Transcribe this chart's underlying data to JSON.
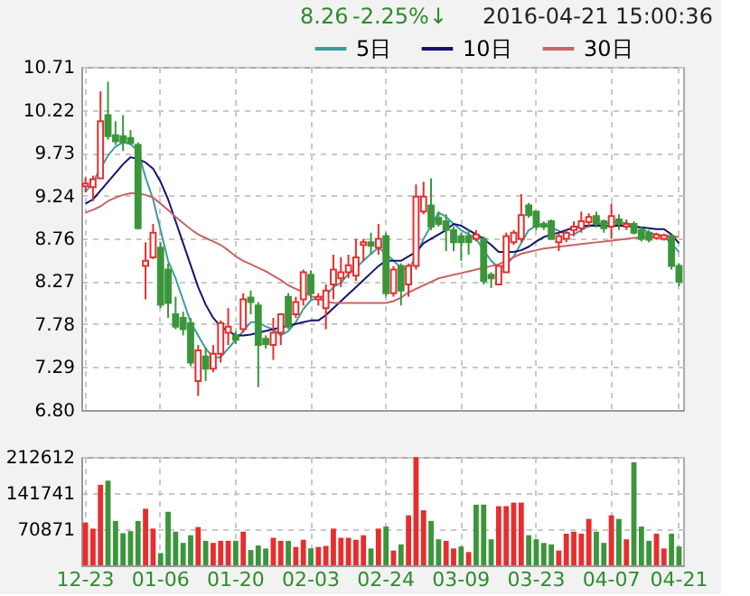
{
  "chart_data": [
    {
      "type": "candlestick",
      "categories": [
        null,
        null,
        null,
        null,
        null,
        null,
        null,
        null,
        null,
        null,
        null,
        null,
        null,
        null,
        null,
        null,
        null,
        null,
        null,
        null,
        null,
        null,
        null,
        null,
        null,
        null,
        null,
        null,
        null,
        null,
        null,
        null,
        null,
        null,
        null,
        null,
        null,
        null,
        null,
        null,
        null,
        null,
        null,
        null,
        null,
        null,
        null,
        null,
        null,
        null,
        null,
        null,
        null,
        null,
        null,
        null,
        null,
        null,
        null,
        null,
        null,
        null,
        null,
        null,
        null,
        null,
        null,
        null,
        null,
        null,
        null,
        null,
        null,
        null,
        null,
        null,
        null,
        null,
        null,
        null
      ],
      "ohlc": [
        [
          9.35,
          9.45,
          9.28,
          9.38
        ],
        [
          9.34,
          9.47,
          9.18,
          9.43
        ],
        [
          9.44,
          10.43,
          9.44,
          10.09
        ],
        [
          10.16,
          10.54,
          9.88,
          9.92
        ],
        [
          9.93,
          10.09,
          9.82,
          9.86
        ],
        [
          9.92,
          10.16,
          9.75,
          9.85
        ],
        [
          9.9,
          9.99,
          9.82,
          9.84
        ],
        [
          9.82,
          9.85,
          8.86,
          8.87
        ],
        [
          8.44,
          8.71,
          8.06,
          8.5
        ],
        [
          8.54,
          8.92,
          8.52,
          8.82
        ],
        [
          8.65,
          8.71,
          7.96,
          8.0
        ],
        [
          8.4,
          8.47,
          7.85,
          8.02
        ],
        [
          7.89,
          8.09,
          7.72,
          7.75
        ],
        [
          7.85,
          7.92,
          7.65,
          7.72
        ],
        [
          7.79,
          7.85,
          7.3,
          7.34
        ],
        [
          7.13,
          7.54,
          6.96,
          7.48
        ],
        [
          7.41,
          7.51,
          7.13,
          7.27
        ],
        [
          7.27,
          7.54,
          7.23,
          7.44
        ],
        [
          7.44,
          7.82,
          7.34,
          7.79
        ],
        [
          7.68,
          7.96,
          7.54,
          7.75
        ],
        [
          7.65,
          7.7,
          7.55,
          7.6
        ],
        [
          7.72,
          8.13,
          7.68,
          8.06
        ],
        [
          8.08,
          8.16,
          7.89,
          8.03
        ],
        [
          7.99,
          8.03,
          7.06,
          7.54
        ],
        [
          7.61,
          7.65,
          7.5,
          7.55
        ],
        [
          7.54,
          7.85,
          7.37,
          7.68
        ],
        [
          7.68,
          7.89,
          7.54,
          7.89
        ],
        [
          8.09,
          8.13,
          7.72,
          7.75
        ],
        [
          7.89,
          8.09,
          7.85,
          8.03
        ],
        [
          8.06,
          8.4,
          7.99,
          8.37
        ],
        [
          8.34,
          8.39,
          8.06,
          8.13
        ],
        [
          8.06,
          8.13,
          7.99,
          8.09
        ],
        [
          7.96,
          8.23,
          7.72,
          8.16
        ],
        [
          8.23,
          8.57,
          8.06,
          8.4
        ],
        [
          8.3,
          8.54,
          8.2,
          8.37
        ],
        [
          8.37,
          8.57,
          8.3,
          8.45
        ],
        [
          8.33,
          8.75,
          8.27,
          8.54
        ],
        [
          8.68,
          8.75,
          8.5,
          8.71
        ],
        [
          8.71,
          8.82,
          8.57,
          8.67
        ],
        [
          8.65,
          8.92,
          8.57,
          8.75
        ],
        [
          8.78,
          8.82,
          8.09,
          8.13
        ],
        [
          8.13,
          8.44,
          8.09,
          8.4
        ],
        [
          8.44,
          8.47,
          7.99,
          8.16
        ],
        [
          8.23,
          8.47,
          8.09,
          8.44
        ],
        [
          8.44,
          9.37,
          8.4,
          9.23
        ],
        [
          9.06,
          9.4,
          9.03,
          9.23
        ],
        [
          9.13,
          9.44,
          8.85,
          8.89
        ],
        [
          8.99,
          9.06,
          8.89,
          8.92
        ],
        [
          8.95,
          9.03,
          8.61,
          8.85
        ],
        [
          8.85,
          8.89,
          8.61,
          8.71
        ],
        [
          8.78,
          8.82,
          8.5,
          8.71
        ],
        [
          8.78,
          8.85,
          8.57,
          8.71
        ],
        [
          8.75,
          8.85,
          8.72,
          8.8
        ],
        [
          8.75,
          8.78,
          8.23,
          8.27
        ],
        [
          8.34,
          8.37,
          8.19,
          8.3
        ],
        [
          8.23,
          8.44,
          8.23,
          8.44
        ],
        [
          8.37,
          8.82,
          8.37,
          8.78
        ],
        [
          8.71,
          8.85,
          8.68,
          8.82
        ],
        [
          8.75,
          9.26,
          8.71,
          9.02
        ],
        [
          9.13,
          9.16,
          8.99,
          9.02
        ],
        [
          9.06,
          9.06,
          8.85,
          8.89
        ],
        [
          8.92,
          8.95,
          8.85,
          8.89
        ],
        [
          8.95,
          8.97,
          8.75,
          8.75
        ],
        [
          8.71,
          8.82,
          8.61,
          8.78
        ],
        [
          8.75,
          8.85,
          8.71,
          8.82
        ],
        [
          8.85,
          8.95,
          8.78,
          8.89
        ],
        [
          8.87,
          9.06,
          8.82,
          8.95
        ],
        [
          8.94,
          9.04,
          8.88,
          9.0
        ],
        [
          9.01,
          9.06,
          8.88,
          8.92
        ],
        [
          8.95,
          8.97,
          8.82,
          8.87
        ],
        [
          8.89,
          9.15,
          8.75,
          9.01
        ],
        [
          8.97,
          9.03,
          8.85,
          8.92
        ],
        [
          8.89,
          8.97,
          8.85,
          8.92
        ],
        [
          8.92,
          8.95,
          8.8,
          8.82
        ],
        [
          8.85,
          8.89,
          8.72,
          8.75
        ],
        [
          8.82,
          8.85,
          8.71,
          8.74
        ],
        [
          8.76,
          8.82,
          8.74,
          8.8
        ],
        [
          8.75,
          8.81,
          8.73,
          8.79
        ],
        [
          8.78,
          8.8,
          8.4,
          8.44
        ],
        [
          8.44,
          8.47,
          8.21,
          8.26
        ]
      ],
      "colors": [
        "#e62e2e",
        "#e62e2e",
        "#e62e2e",
        "#3b963b",
        "#3b963b",
        "#3b963b",
        "#3b963b",
        "#3b963b",
        "#e62e2e",
        "#e62e2e",
        "#3b963b",
        "#3b963b",
        "#3b963b",
        "#3b963b",
        "#3b963b",
        "#e62e2e",
        "#3b963b",
        "#e62e2e",
        "#e62e2e",
        "#e62e2e",
        "#3b963b",
        "#e62e2e",
        "#3b963b",
        "#3b963b",
        "#3b963b",
        "#e62e2e",
        "#e62e2e",
        "#3b963b",
        "#e62e2e",
        "#e62e2e",
        "#3b963b",
        "#e62e2e",
        "#e62e2e",
        "#e62e2e",
        "#e62e2e",
        "#e62e2e",
        "#e62e2e",
        "#e62e2e",
        "#3b963b",
        "#e62e2e",
        "#3b963b",
        "#e62e2e",
        "#3b963b",
        "#e62e2e",
        "#e62e2e",
        "#e62e2e",
        "#3b963b",
        "#3b963b",
        "#3b963b",
        "#3b963b",
        "#3b963b",
        "#3b963b",
        "#e62e2e",
        "#3b963b",
        "#3b963b",
        "#e62e2e",
        "#e62e2e",
        "#e62e2e",
        "#e62e2e",
        "#3b963b",
        "#3b963b",
        "#3b963b",
        "#3b963b",
        "#e62e2e",
        "#e62e2e",
        "#e62e2e",
        "#e62e2e",
        "#e62e2e",
        "#3b963b",
        "#3b963b",
        "#e62e2e",
        "#3b963b",
        "#e62e2e",
        "#3b963b",
        "#3b963b",
        "#3b963b",
        "#e62e2e",
        "#e62e2e",
        "#3b963b",
        "#3b963b"
      ],
      "series": [
        {
          "name": "5日",
          "type": "line",
          "color": "#3a9e9e",
          "values": [
            9.28,
            9.4,
            9.55,
            9.7,
            9.8,
            9.85,
            9.83,
            9.75,
            9.45,
            9.2,
            8.85,
            8.5,
            8.3,
            8.05,
            7.8,
            7.65,
            7.5,
            7.4,
            7.4,
            7.5,
            7.6,
            7.7,
            7.8,
            7.8,
            7.75,
            7.72,
            7.65,
            7.7,
            7.8,
            7.95,
            8.05,
            8.08,
            8.1,
            8.2,
            8.25,
            8.35,
            8.42,
            8.5,
            8.58,
            8.65,
            8.58,
            8.5,
            8.42,
            8.4,
            8.55,
            8.75,
            8.9,
            9.05,
            9.0,
            8.92,
            8.85,
            8.8,
            8.75,
            8.62,
            8.5,
            8.42,
            8.45,
            8.55,
            8.7,
            8.85,
            8.9,
            8.92,
            8.88,
            8.84,
            8.8,
            8.8,
            8.85,
            8.9,
            8.92,
            8.92,
            8.94,
            8.94,
            8.93,
            8.9,
            8.87,
            8.82,
            8.8,
            8.77,
            8.7,
            8.6
          ]
        },
        {
          "name": "10日",
          "type": "line",
          "color": "#14146e",
          "values": [
            9.15,
            9.2,
            9.3,
            9.4,
            9.5,
            9.6,
            9.68,
            9.66,
            9.62,
            9.55,
            9.4,
            9.2,
            8.95,
            8.7,
            8.45,
            8.2,
            8.0,
            7.85,
            7.75,
            7.7,
            7.65,
            7.65,
            7.66,
            7.68,
            7.7,
            7.72,
            7.74,
            7.76,
            7.78,
            7.8,
            7.82,
            7.82,
            7.88,
            7.96,
            8.04,
            8.12,
            8.2,
            8.28,
            8.36,
            8.44,
            8.5,
            8.5,
            8.5,
            8.55,
            8.6,
            8.7,
            8.75,
            8.8,
            8.85,
            8.92,
            8.9,
            8.85,
            8.8,
            8.75,
            8.68,
            8.6,
            8.6,
            8.6,
            8.62,
            8.66,
            8.72,
            8.77,
            8.8,
            8.82,
            8.85,
            8.88,
            8.9,
            8.9,
            8.9,
            8.9,
            8.9,
            8.9,
            8.9,
            8.89,
            8.88,
            8.87,
            8.86,
            8.86,
            8.8,
            8.7
          ]
        },
        {
          "name": "30日",
          "type": "line",
          "color": "#c86464",
          "values": [
            9.05,
            9.08,
            9.12,
            9.18,
            9.22,
            9.25,
            9.27,
            9.27,
            9.25,
            9.22,
            9.15,
            9.08,
            9.0,
            8.93,
            8.86,
            8.8,
            8.76,
            8.72,
            8.68,
            8.62,
            8.55,
            8.5,
            8.46,
            8.42,
            8.38,
            8.33,
            8.28,
            8.22,
            8.18,
            8.14,
            8.1,
            8.07,
            8.04,
            8.02,
            8.02,
            8.02,
            8.02,
            8.02,
            8.02,
            8.02,
            8.02,
            8.04,
            8.08,
            8.14,
            8.18,
            8.22,
            8.26,
            8.3,
            8.32,
            8.34,
            8.36,
            8.38,
            8.4,
            8.42,
            8.44,
            8.46,
            8.5,
            8.54,
            8.58,
            8.6,
            8.62,
            8.64,
            8.65,
            8.66,
            8.67,
            8.68,
            8.69,
            8.7,
            8.71,
            8.72,
            8.73,
            8.74,
            8.75,
            8.76,
            8.77,
            8.77,
            8.78,
            8.78,
            8.78,
            8.77
          ]
        }
      ],
      "ylim": [
        6.8,
        10.71
      ],
      "yticks": [
        10.71,
        10.22,
        9.73,
        9.24,
        8.76,
        8.27,
        7.78,
        7.29,
        {
          "value": 6.8,
          "label": "6.80"
        }
      ],
      "grid": true,
      "legend": "top right",
      "tick_labels": "y",
      "marker": "none",
      "annotations": [
        "8.26",
        "-2.25%↓",
        "2016-04-21 15:00:36"
      ]
    },
    {
      "type": "bar",
      "categories": [
        "12-23",
        null,
        null,
        null,
        null,
        null,
        null,
        null,
        null,
        null,
        "01-06",
        null,
        null,
        null,
        null,
        null,
        null,
        null,
        null,
        null,
        "01-20",
        null,
        null,
        null,
        null,
        null,
        null,
        null,
        null,
        null,
        "02-03",
        null,
        null,
        null,
        null,
        null,
        null,
        null,
        null,
        null,
        "02-24",
        null,
        null,
        null,
        null,
        null,
        null,
        null,
        null,
        null,
        "03-09",
        null,
        null,
        null,
        null,
        null,
        null,
        null,
        null,
        null,
        "03-23",
        null,
        null,
        null,
        null,
        null,
        null,
        null,
        null,
        null,
        "04-07",
        null,
        null,
        null,
        null,
        null,
        null,
        null,
        null,
        "04-21"
      ],
      "values": [
        84000,
        72000,
        158000,
        166000,
        87000,
        63000,
        67000,
        87000,
        111000,
        72000,
        24000,
        105000,
        66000,
        44000,
        59000,
        75000,
        48000,
        44000,
        48000,
        48000,
        48000,
        66000,
        30000,
        39000,
        33000,
        54000,
        48000,
        48000,
        36000,
        50000,
        33000,
        36000,
        38000,
        72000,
        54000,
        54000,
        50000,
        59000,
        33000,
        72000,
        76000,
        29000,
        41000,
        98000,
        212000,
        108000,
        87000,
        51000,
        48000,
        33000,
        37000,
        26000,
        119000,
        119000,
        51000,
        116000,
        116000,
        123000,
        123000,
        59000,
        51000,
        44000,
        41000,
        29000,
        62000,
        66000,
        62000,
        91000,
        66000,
        44000,
        98000,
        91000,
        51000,
        202000,
        76000,
        48000,
        62000,
        33000,
        62000,
        37000
      ],
      "colors": [
        "#e62e2e",
        "#e62e2e",
        "#e62e2e",
        "#3b963b",
        "#3b963b",
        "#3b963b",
        "#3b963b",
        "#3b963b",
        "#e62e2e",
        "#e62e2e",
        "#3b963b",
        "#3b963b",
        "#3b963b",
        "#3b963b",
        "#3b963b",
        "#e62e2e",
        "#3b963b",
        "#e62e2e",
        "#e62e2e",
        "#e62e2e",
        "#3b963b",
        "#e62e2e",
        "#3b963b",
        "#3b963b",
        "#3b963b",
        "#e62e2e",
        "#e62e2e",
        "#3b963b",
        "#e62e2e",
        "#e62e2e",
        "#3b963b",
        "#e62e2e",
        "#e62e2e",
        "#e62e2e",
        "#e62e2e",
        "#e62e2e",
        "#e62e2e",
        "#e62e2e",
        "#3b963b",
        "#e62e2e",
        "#3b963b",
        "#e62e2e",
        "#3b963b",
        "#e62e2e",
        "#e62e2e",
        "#e62e2e",
        "#3b963b",
        "#3b963b",
        "#e62e2e",
        "#e62e2e",
        "#3b963b",
        "#e62e2e",
        "#3b963b",
        "#3b963b",
        "#3b963b",
        "#e62e2e",
        "#e62e2e",
        "#e62e2e",
        "#e62e2e",
        "#3b963b",
        "#3b963b",
        "#3b963b",
        "#3b963b",
        "#e62e2e",
        "#e62e2e",
        "#e62e2e",
        "#e62e2e",
        "#e62e2e",
        "#3b963b",
        "#3b963b",
        "#e62e2e",
        "#3b963b",
        "#e62e2e",
        "#3b963b",
        "#3b963b",
        "#3b963b",
        "#e62e2e",
        "#e62e2e",
        "#3b963b",
        "#3b963b"
      ],
      "ylim": [
        0,
        212612
      ],
      "yticks": [
        70871,
        141741,
        212612
      ],
      "grid": true
    }
  ]
}
